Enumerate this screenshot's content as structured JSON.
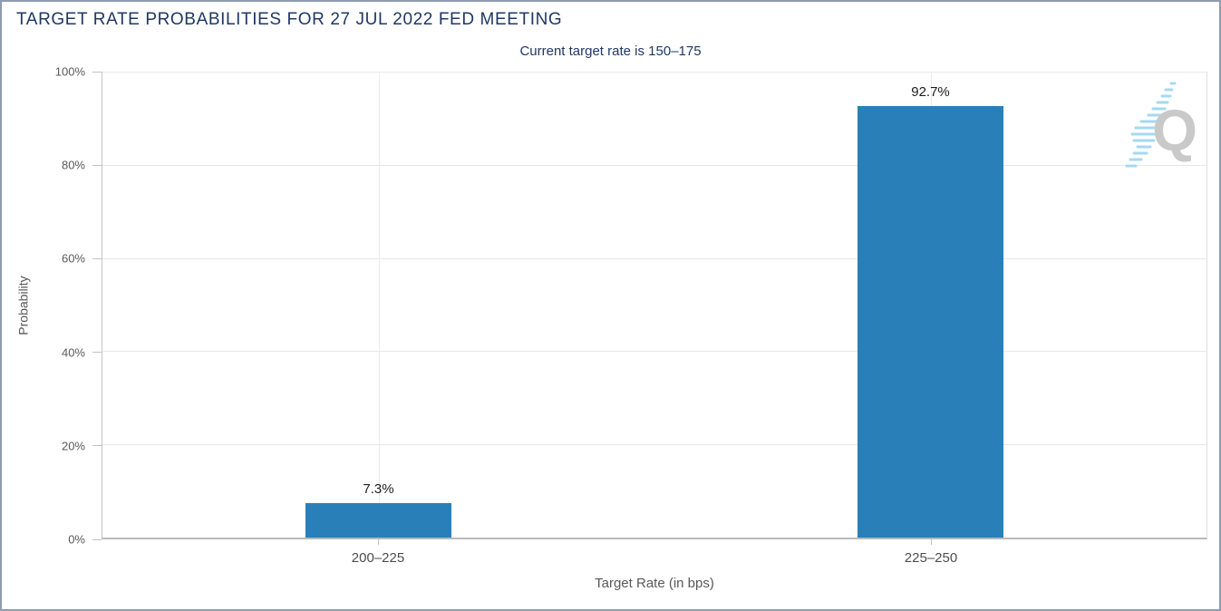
{
  "header": {
    "title": "TARGET RATE PROBABILITIES FOR 27 JUL 2022 FED MEETING",
    "subtitle": "Current target rate is 150–175"
  },
  "chart_data": {
    "type": "bar",
    "title": "TARGET RATE PROBABILITIES FOR 27 JUL 2022 FED MEETING",
    "subtitle": "Current target rate is 150–175",
    "categories": [
      "200–225",
      "225–250"
    ],
    "values": [
      7.3,
      92.7
    ],
    "value_labels": [
      "7.3%",
      "92.7%"
    ],
    "xlabel": "Target Rate (in bps)",
    "ylabel": "Probability",
    "ylim": [
      0,
      100
    ],
    "ytick_step": 20,
    "ytick_labels": [
      "0%",
      "20%",
      "40%",
      "60%",
      "80%",
      "100%"
    ],
    "grid": true,
    "legend": "none",
    "bar_width_pct": 13.28
  },
  "colors": {
    "bar": "#2980b8",
    "title_text": "#1f3864",
    "frame_border": "#8e9cb0",
    "logo_letter": "#c9c9c9",
    "logo_swoosh": "#a5d9f0"
  },
  "logo": {
    "letter": "Q"
  }
}
